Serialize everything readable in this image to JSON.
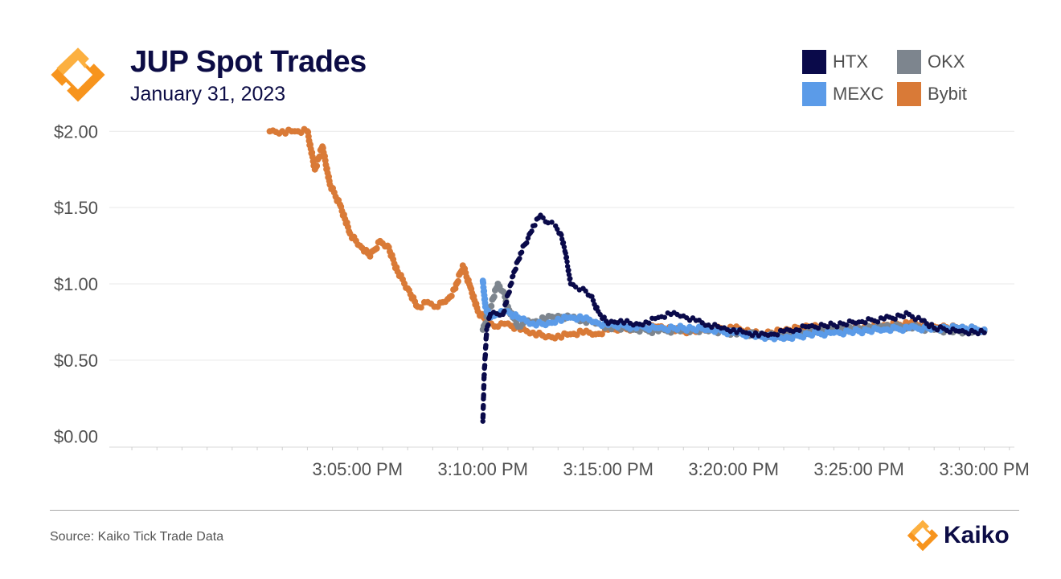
{
  "header": {
    "title": "JUP Spot Trades",
    "subtitle": "January 31, 2023",
    "logo_icon": "kaiko-diamond-icon"
  },
  "colors": {
    "htx": "#0a0a4a",
    "okx": "#7d858e",
    "mexc": "#5b9be8",
    "bybit": "#d97a37",
    "logo_orange": "#f7941d",
    "logo_light": "#fcb040",
    "grid": "#e9e9e9"
  },
  "footer": {
    "source": "Source: Kaiko Tick Trade Data",
    "brand_name": "Kaiko",
    "brand_icon": "kaiko-diamond-icon"
  },
  "chart_data": {
    "type": "scatter",
    "title": "JUP Spot Trades",
    "subtitle": "January 31, 2023",
    "xlabel": "",
    "ylabel": "",
    "x_unit": "minutes after 3:00:00 PM",
    "xlim": [
      -4.9,
      31.2
    ],
    "ylim": [
      -0.07,
      2.07
    ],
    "x_ticks": [
      {
        "value": 5,
        "label": "3:05:00 PM"
      },
      {
        "value": 10,
        "label": "3:10:00 PM"
      },
      {
        "value": 15,
        "label": "3:15:00 PM"
      },
      {
        "value": 20,
        "label": "3:20:00 PM"
      },
      {
        "value": 25,
        "label": "3:25:00 PM"
      },
      {
        "value": 30,
        "label": "3:30:00 PM"
      }
    ],
    "y_ticks": [
      {
        "value": 0,
        "label": "$0.00"
      },
      {
        "value": 0.5,
        "label": "$0.50"
      },
      {
        "value": 1,
        "label": "$1.00"
      },
      {
        "value": 1.5,
        "label": "$1.50"
      },
      {
        "value": 2,
        "label": "$2.00"
      }
    ],
    "grid": true,
    "legend_position": "top-right",
    "series": [
      {
        "name": "Bybit",
        "color": "#d97a37",
        "x": [
          1.5,
          2.0,
          2.5,
          3.0,
          3.3,
          3.6,
          3.9,
          4.3,
          4.7,
          5.1,
          5.5,
          5.9,
          6.2,
          6.6,
          7.0,
          7.4,
          7.8,
          8.2,
          8.6,
          8.9,
          9.2,
          9.5,
          9.8,
          10.2,
          10.6,
          11.0,
          11.5,
          12.0,
          12.5,
          13.0,
          13.5,
          14.0,
          14.5,
          15.0,
          16.0,
          17.0,
          18.0,
          19.0,
          20.0,
          21.0,
          22.0,
          23.0,
          24.0,
          25.0,
          26.0,
          27.0,
          28.0,
          29.0,
          30.0
        ],
        "y": [
          2.0,
          2.0,
          2.0,
          2.0,
          1.75,
          1.9,
          1.65,
          1.52,
          1.33,
          1.25,
          1.18,
          1.28,
          1.25,
          1.08,
          0.97,
          0.85,
          0.88,
          0.85,
          0.9,
          0.97,
          1.12,
          0.98,
          0.82,
          0.75,
          0.72,
          0.74,
          0.7,
          0.68,
          0.65,
          0.66,
          0.67,
          0.68,
          0.67,
          0.7,
          0.71,
          0.72,
          0.69,
          0.7,
          0.71,
          0.67,
          0.69,
          0.72,
          0.7,
          0.71,
          0.73,
          0.74,
          0.72,
          0.71,
          0.7
        ]
      },
      {
        "name": "OKX",
        "color": "#7d858e",
        "x": [
          10.0,
          10.3,
          10.6,
          10.8,
          11.0,
          11.2,
          11.4,
          11.6,
          11.8,
          12.0,
          12.5,
          13.0,
          13.5,
          14.0,
          14.5,
          15.0,
          16.0,
          17.0,
          18.0,
          19.0,
          20.0,
          21.0,
          22.0,
          23.0,
          24.0,
          25.0,
          26.0,
          27.0,
          28.0,
          29.0,
          30.0
        ],
        "y": [
          0.7,
          0.85,
          1.0,
          0.95,
          0.85,
          0.78,
          0.72,
          0.74,
          0.76,
          0.75,
          0.77,
          0.79,
          0.78,
          0.76,
          0.74,
          0.72,
          0.7,
          0.69,
          0.7,
          0.69,
          0.68,
          0.67,
          0.66,
          0.69,
          0.7,
          0.71,
          0.72,
          0.72,
          0.7,
          0.69,
          0.69
        ]
      },
      {
        "name": "MEXC",
        "color": "#5b9be8",
        "x": [
          10.0,
          10.1,
          10.3,
          10.6,
          11.0,
          11.5,
          12.0,
          12.5,
          13.0,
          13.5,
          14.0,
          14.5,
          15.0,
          16.0,
          17.0,
          18.0,
          19.0,
          20.0,
          21.0,
          22.0,
          23.0,
          24.0,
          25.0,
          26.0,
          27.0,
          28.0,
          29.0,
          30.0
        ],
        "y": [
          1.02,
          0.85,
          0.78,
          0.8,
          0.82,
          0.77,
          0.74,
          0.73,
          0.77,
          0.78,
          0.77,
          0.75,
          0.73,
          0.72,
          0.71,
          0.71,
          0.7,
          0.68,
          0.66,
          0.64,
          0.67,
          0.68,
          0.69,
          0.7,
          0.71,
          0.71,
          0.71,
          0.7
        ]
      },
      {
        "name": "HTX",
        "color": "#0a0a4a",
        "x": [
          10.0,
          10.05,
          10.15,
          10.3,
          10.8,
          11.2,
          11.5,
          11.8,
          12.0,
          12.3,
          12.6,
          12.9,
          13.1,
          13.3,
          13.5,
          13.7,
          14.0,
          14.3,
          14.6,
          15.0,
          15.5,
          16.0,
          16.5,
          17.0,
          17.5,
          18.0,
          18.5,
          19.0,
          19.5,
          20.0,
          20.5,
          21.0,
          21.5,
          22.0,
          22.5,
          23.0,
          24.0,
          25.0,
          26.0,
          27.0,
          27.5,
          28.0,
          29.0,
          30.0
        ],
        "y": [
          0.1,
          0.4,
          0.7,
          0.8,
          0.8,
          1.05,
          1.2,
          1.3,
          1.38,
          1.45,
          1.4,
          1.38,
          1.33,
          1.2,
          1.0,
          0.98,
          0.97,
          0.92,
          0.82,
          0.74,
          0.76,
          0.73,
          0.75,
          0.78,
          0.8,
          0.79,
          0.76,
          0.73,
          0.71,
          0.7,
          0.68,
          0.66,
          0.67,
          0.69,
          0.7,
          0.72,
          0.73,
          0.75,
          0.77,
          0.8,
          0.76,
          0.71,
          0.69,
          0.68
        ]
      }
    ]
  }
}
